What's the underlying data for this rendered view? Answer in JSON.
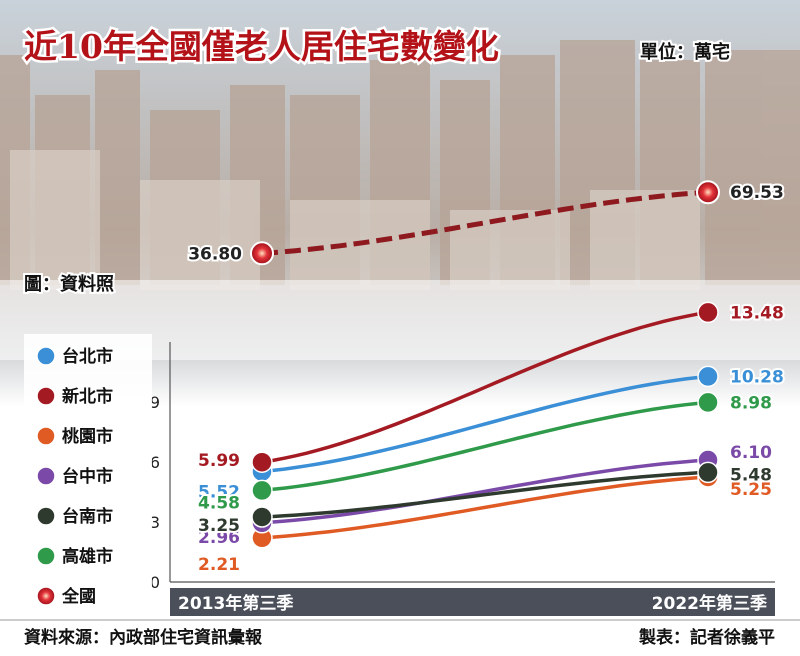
{
  "title": "近10年全國僅老人居住宅數變化",
  "unit_label": "單位：萬宅",
  "photo_credit": "圖：資料照",
  "source": "資料來源：內政部住宅資訊彙報",
  "author": "製表：記者徐義平",
  "colors": {
    "title": "#b31218",
    "national": "#8e1a1f",
    "axis_bar": "#4a4f5a"
  },
  "chart_data": {
    "type": "line",
    "x": [
      "2013年第三季",
      "2022年第三季"
    ],
    "xlabel_start": "2013年第三季",
    "xlabel_end": "2022年第三季",
    "ylim": [
      0,
      12
    ],
    "yticks": [
      "0",
      "3",
      "6",
      "9"
    ],
    "ytick_values": [
      0,
      3,
      6,
      9
    ],
    "national": {
      "name": "全國",
      "color": "#8e1a1f",
      "start": 36.8,
      "end": 69.53,
      "start_label": "36.80",
      "end_label": "69.53"
    },
    "series": [
      {
        "name": "台北市",
        "color": "#3a8fd6",
        "start": 5.52,
        "end": 10.28,
        "start_label": "5.52",
        "end_label": "10.28"
      },
      {
        "name": "新北市",
        "color": "#a41a22",
        "start": 5.99,
        "end": 13.48,
        "start_label": "5.99",
        "end_label": "13.48"
      },
      {
        "name": "桃園市",
        "color": "#e05a24",
        "start": 2.21,
        "end": 5.25,
        "start_label": "2.21",
        "end_label": "5.25"
      },
      {
        "name": "台中市",
        "color": "#7b4aa8",
        "start": 2.96,
        "end": 6.1,
        "start_label": "2.96",
        "end_label": "6.10"
      },
      {
        "name": "台南市",
        "color": "#2f3a2f",
        "start": 3.25,
        "end": 5.48,
        "start_label": "3.25",
        "end_label": "5.48"
      },
      {
        "name": "高雄市",
        "color": "#2e9a4a",
        "start": 4.58,
        "end": 8.98,
        "start_label": "4.58",
        "end_label": "8.98"
      }
    ]
  }
}
